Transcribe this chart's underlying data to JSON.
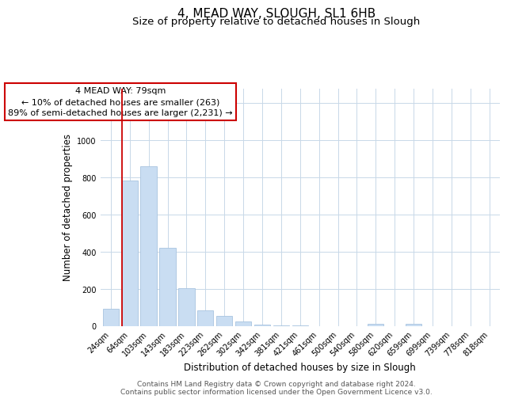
{
  "title_line1": "4, MEAD WAY, SLOUGH, SL1 6HB",
  "title_line2": "Size of property relative to detached houses in Slough",
  "xlabel": "Distribution of detached houses by size in Slough",
  "ylabel": "Number of detached properties",
  "bar_labels": [
    "24sqm",
    "64sqm",
    "103sqm",
    "143sqm",
    "183sqm",
    "223sqm",
    "262sqm",
    "302sqm",
    "342sqm",
    "381sqm",
    "421sqm",
    "461sqm",
    "500sqm",
    "540sqm",
    "580sqm",
    "620sqm",
    "659sqm",
    "699sqm",
    "739sqm",
    "778sqm",
    "818sqm"
  ],
  "bar_values": [
    93,
    785,
    860,
    420,
    203,
    85,
    52,
    22,
    8,
    3,
    2,
    0,
    0,
    0,
    12,
    0,
    12,
    0,
    0,
    0,
    0
  ],
  "bar_color": "#c9ddf2",
  "bar_edge_color": "#a8c4e0",
  "vline_x_index": 1,
  "vline_color": "#cc0000",
  "annotation_line1": "4 MEAD WAY: 79sqm",
  "annotation_line2": "← 10% of detached houses are smaller (263)",
  "annotation_line3": "89% of semi-detached houses are larger (2,231) →",
  "annotation_box_edgecolor": "#cc0000",
  "annotation_box_facecolor": "#ffffff",
  "ylim": [
    0,
    1280
  ],
  "yticks": [
    0,
    200,
    400,
    600,
    800,
    1000,
    1200
  ],
  "footnote": "Contains HM Land Registry data © Crown copyright and database right 2024.\nContains public sector information licensed under the Open Government Licence v3.0.",
  "background_color": "#ffffff",
  "grid_color": "#c8d8e8",
  "title_fontsize": 11,
  "subtitle_fontsize": 9.5,
  "axis_label_fontsize": 8.5,
  "tick_fontsize": 7,
  "annotation_fontsize": 8,
  "footnote_fontsize": 6.5
}
